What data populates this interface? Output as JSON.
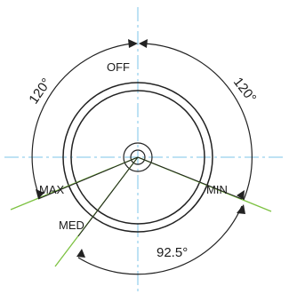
{
  "labels": {
    "off": "OFF",
    "max": "MAX",
    "med": "MED",
    "min": "MIN",
    "angle_left": "120°",
    "angle_right": "120°",
    "angle_bottom": "92.5°"
  },
  "colors": {
    "centerline": "#7ec4e8",
    "pointer_line": "#7dc242",
    "outline": "#222222"
  }
}
